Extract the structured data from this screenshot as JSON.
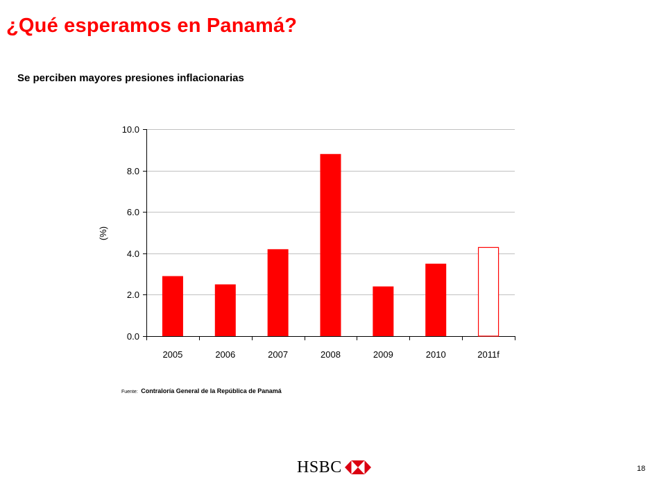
{
  "slide": {
    "title": "¿Qué esperamos en Panamá?",
    "subtitle": "Se perciben mayores presiones inflacionarias",
    "source_label": "Fuente:",
    "source_text": "Contraloría General de la República de Panamá",
    "page_number": "18",
    "logo_text": "HSBC",
    "accent_color": "#ff0000"
  },
  "chart_data": {
    "type": "bar",
    "categories": [
      "2005",
      "2006",
      "2007",
      "2008",
      "2009",
      "2010",
      "2011f"
    ],
    "values": [
      2.9,
      2.5,
      4.2,
      8.8,
      2.4,
      3.5,
      4.3
    ],
    "forecast": [
      false,
      false,
      false,
      false,
      false,
      false,
      true
    ],
    "yticks": [
      "0.0",
      "2.0",
      "4.0",
      "6.0",
      "8.0",
      "10.0"
    ],
    "ylabel": "(%)",
    "ylim": [
      0,
      10
    ],
    "grid": true,
    "bar_color": "#ff0000",
    "forecast_fill": "#ffffff",
    "gridline_color": "#c0c0c0"
  }
}
